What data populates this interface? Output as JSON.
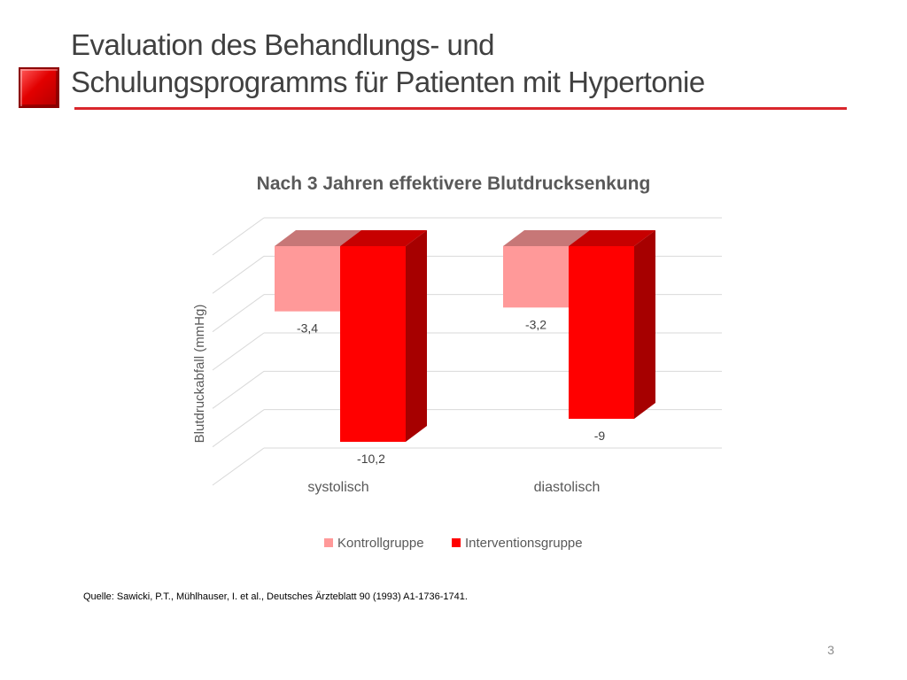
{
  "slide": {
    "title_line1": "Evaluation des Behandlungs- und",
    "title_line2": "Schulungsprogramms für Patienten mit Hypertonie",
    "source": "Quelle: Sawicki, P.T., Mühlhauser, I. et al., Deutsches Ärzteblatt 90 (1993) A1-1736-1741.",
    "page_number": "3",
    "accent_color": "#d9262c"
  },
  "chart_data": {
    "type": "bar",
    "title": "Nach 3 Jahren effektivere Blutdrucksenkung",
    "xlabel": "",
    "ylabel": "Blutdruckabfall (mmHg)",
    "categories": [
      "systolisch",
      "diastolisch"
    ],
    "series": [
      {
        "name": "Kontrollgruppe",
        "values": [
          -3.4,
          -3.2
        ],
        "labels": [
          "-3,4",
          "-3,2"
        ],
        "color": "#ff9999"
      },
      {
        "name": "Interventionsgruppe",
        "values": [
          -10.2,
          -9
        ],
        "labels": [
          "-10,2",
          "-9"
        ],
        "color": "#ff0000"
      }
    ],
    "ylim": [
      -12,
      0
    ],
    "grid": true,
    "legend": "bottom",
    "style": "3d-clustered-column"
  }
}
